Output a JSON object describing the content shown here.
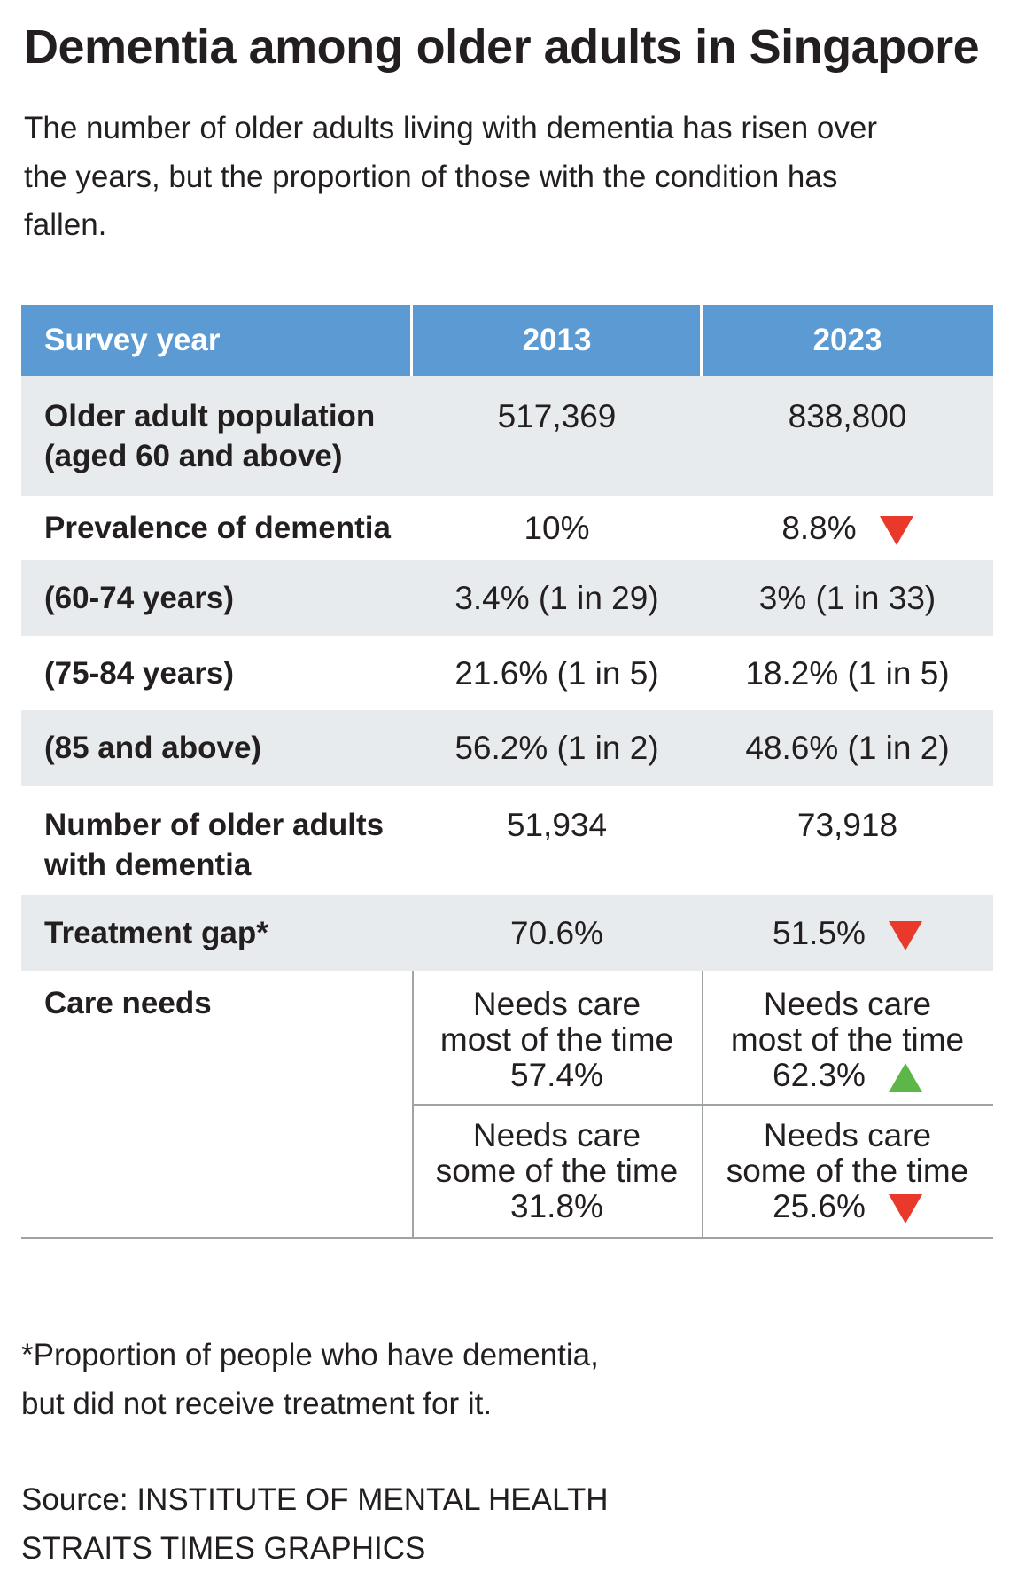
{
  "title": "Dementia among older adults in Singapore",
  "subtitle": "The number of older adults living with dementia has risen over the years, but the proportion of those with the condition has fallen.",
  "chart_data": {
    "type": "table",
    "columns": [
      "Survey year",
      "2013",
      "2023"
    ],
    "rows": [
      {
        "label": "Older adult population (aged 60 and above)",
        "v2013": "517,369",
        "v2023": "838,800",
        "trend2023": ""
      },
      {
        "label": "Prevalence of dementia",
        "v2013": "10%",
        "v2023": "8.8%",
        "trend2023": "down"
      },
      {
        "label": "(60-74 years)",
        "v2013": "3.4% (1 in 29)",
        "v2023": "3% (1 in 33)",
        "trend2023": ""
      },
      {
        "label": "(75-84 years)",
        "v2013": "21.6% (1 in 5)",
        "v2023": "18.2% (1 in 5)",
        "trend2023": ""
      },
      {
        "label": "(85 and above)",
        "v2013": "56.2% (1 in 2)",
        "v2023": "48.6% (1 in 2)",
        "trend2023": ""
      },
      {
        "label": "Number of older adults with dementia",
        "v2013": "51,934",
        "v2023": "73,918",
        "trend2023": ""
      },
      {
        "label": "Treatment gap*",
        "v2013": "70.6%",
        "v2023": "51.5%",
        "trend2023": "down"
      }
    ],
    "care_needs": {
      "label": "Care needs",
      "items": [
        {
          "line1": "Needs care",
          "line2": "most of the time",
          "v2013": "57.4%",
          "v2023": "62.3%",
          "trend2023": "up"
        },
        {
          "line1": "Needs care",
          "line2": "some of the time",
          "v2013": "31.8%",
          "v2023": "25.6%",
          "trend2023": "down"
        }
      ]
    },
    "trend_colors": {
      "down": "#e8392a",
      "up": "#5cb748"
    },
    "header_color": "#5b9ad3",
    "shade_color": "#e8ebed"
  },
  "footnote": {
    "line1": "*Proportion of people who have dementia,",
    "line2": "but did not receive treatment for it."
  },
  "source": {
    "line1": "Source: INSTITUTE OF MENTAL HEALTH",
    "line2": "STRAITS TIMES GRAPHICS"
  }
}
